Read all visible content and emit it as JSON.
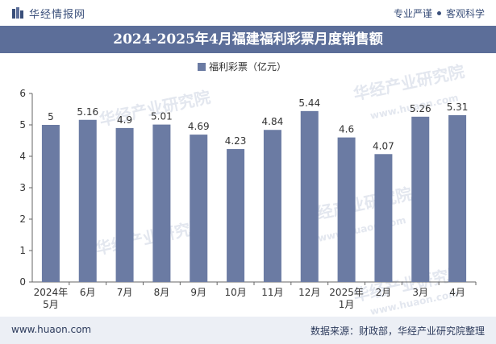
{
  "header": {
    "brand": "华经情报网",
    "tag1": "专业严谨",
    "tag2": "客观科学"
  },
  "title": "2024-2025年4月福建福利彩票月度销售额",
  "footer": {
    "website": "www.huaon.com",
    "source": "数据来源：财政部，华经产业研究院整理"
  },
  "watermark": {
    "cn": "华经产业研究院",
    "en": "www.huaon.com"
  },
  "colors": {
    "bar": "#6b7ba3",
    "title_bg": "#5c6e99",
    "footer_bg": "#eceff5"
  },
  "chart_data": {
    "type": "bar",
    "categories": [
      "2024年5月",
      "6月",
      "7月",
      "8月",
      "9月",
      "10月",
      "11月",
      "12月",
      "2025年1月",
      "2月",
      "3月",
      "4月"
    ],
    "series": [
      {
        "name": "福利彩票（亿元）",
        "values": [
          5,
          5.16,
          4.9,
          5.01,
          4.69,
          4.23,
          4.84,
          5.44,
          4.6,
          4.07,
          5.26,
          5.31
        ]
      }
    ],
    "ylim": [
      0,
      6
    ],
    "yticks": [
      0,
      1,
      2,
      3,
      4,
      5,
      6
    ],
    "legend_position": "top-center",
    "grid": false
  }
}
